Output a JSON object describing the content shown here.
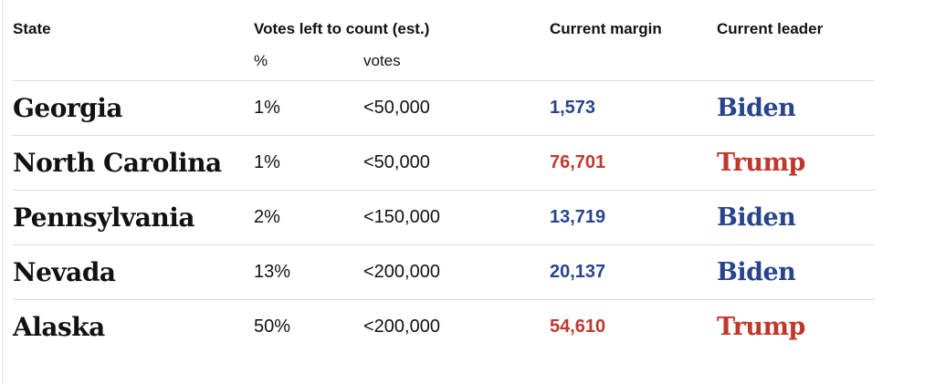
{
  "table": {
    "columns": {
      "state": "State",
      "votes_left_group": "Votes left to count (est.)",
      "pct_sub": "%",
      "votes_sub": "votes",
      "margin": "Current margin",
      "leader": "Current leader"
    },
    "rows": [
      {
        "state": "Georgia",
        "pct": "1%",
        "votes": "<50,000",
        "margin": "1,573",
        "leader": "Biden",
        "party": "dem"
      },
      {
        "state": "North Carolina",
        "pct": "1%",
        "votes": "<50,000",
        "margin": "76,701",
        "leader": "Trump",
        "party": "gop"
      },
      {
        "state": "Pennsylvania",
        "pct": "2%",
        "votes": "<150,000",
        "margin": "13,719",
        "leader": "Biden",
        "party": "dem"
      },
      {
        "state": "Nevada",
        "pct": "13%",
        "votes": "<200,000",
        "margin": "20,137",
        "leader": "Biden",
        "party": "dem"
      },
      {
        "state": "Alaska",
        "pct": "50%",
        "votes": "<200,000",
        "margin": "54,610",
        "leader": "Trump",
        "party": "gop"
      }
    ]
  },
  "colors": {
    "dem": "#28458c",
    "gop": "#c0382c",
    "text": "#121212",
    "divider": "#dcdcdc"
  }
}
